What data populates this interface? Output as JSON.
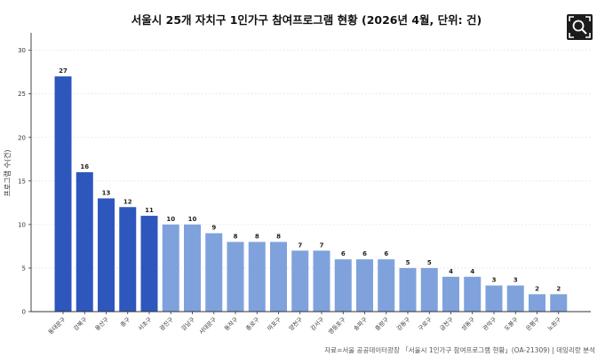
{
  "chart_data": {
    "type": "bar",
    "title": "서울시 25개 자치구 1인가구 참여프로그램 현황 (2026년 4월, 단위: 건)",
    "xlabel": "",
    "ylabel": "프로그램 수(건)",
    "ylim": [
      0,
      32
    ],
    "yticks": [
      0,
      5,
      10,
      15,
      20,
      25,
      30
    ],
    "grid": true,
    "categories": [
      "동대문구",
      "강북구",
      "용산구",
      "중구",
      "서초구",
      "광진구",
      "강남구",
      "서대문구",
      "동작구",
      "종로구",
      "마포구",
      "양천구",
      "강서구",
      "영등포구",
      "송파구",
      "중랑구",
      "강동구",
      "구로구",
      "금천구",
      "성동구",
      "관악구",
      "도봉구",
      "은평구",
      "노원구"
    ],
    "values": [
      27,
      16,
      13,
      12,
      11,
      10,
      10,
      9,
      8,
      8,
      8,
      7,
      7,
      6,
      6,
      6,
      5,
      5,
      4,
      4,
      3,
      3,
      2,
      2
    ],
    "colors": {
      "highlight": "#2d57bd",
      "base": "#7fa2dc",
      "axis": "#333333",
      "grid": "#e6e6e6",
      "label": "#222222"
    },
    "highlight_count": 5
  },
  "source": "자료=서울 공공데이터광장 「서울시 1인가구 참여프로그램 현황」(OA-21309)  |  데잉리랑 분석",
  "toolbar": {
    "zoom_icon": "zoom-icon"
  }
}
